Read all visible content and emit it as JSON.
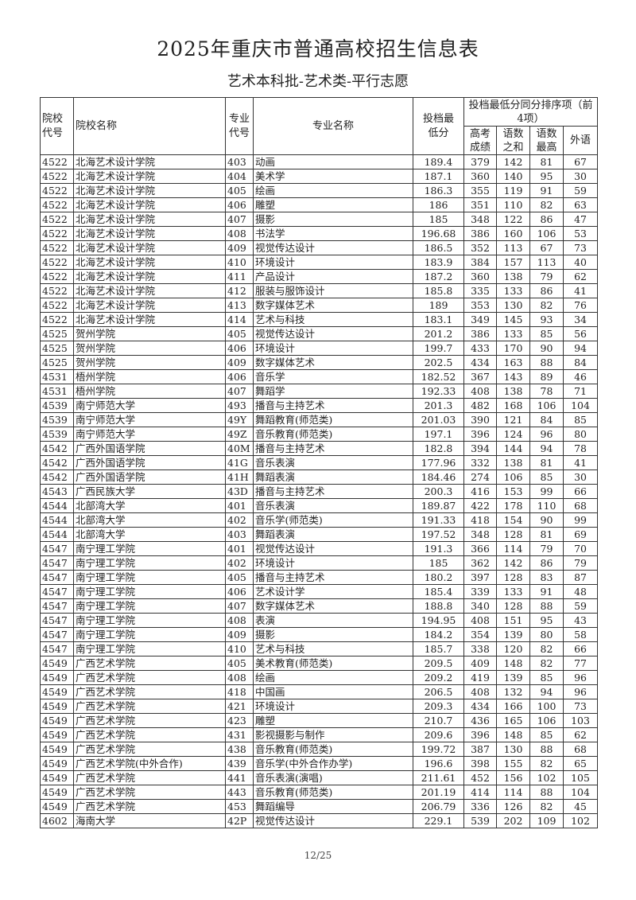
{
  "title": "2025年重庆市普通高校招生信息表",
  "subtitle": "艺术本科批-艺术类-平行志愿",
  "headers": {
    "school_code": "院校代号",
    "school_name": "院校名称",
    "major_code": "专业代号",
    "major_name": "专业名称",
    "min_score": "投档最低分",
    "tiebreak_group": "投档最低分同分排序项（前4项）",
    "gaokao": "高考成绩",
    "yushu_sum": "语数之和",
    "yushu_max": "语数最高",
    "foreign": "外语"
  },
  "rows": [
    [
      "4522",
      "北海艺术设计学院",
      "403",
      "动画",
      "189.4",
      "379",
      "142",
      "81",
      "67"
    ],
    [
      "4522",
      "北海艺术设计学院",
      "404",
      "美术学",
      "187.1",
      "360",
      "140",
      "95",
      "30"
    ],
    [
      "4522",
      "北海艺术设计学院",
      "405",
      "绘画",
      "186.3",
      "355",
      "119",
      "91",
      "59"
    ],
    [
      "4522",
      "北海艺术设计学院",
      "406",
      "雕塑",
      "186",
      "351",
      "110",
      "82",
      "63"
    ],
    [
      "4522",
      "北海艺术设计学院",
      "407",
      "摄影",
      "185",
      "348",
      "122",
      "86",
      "47"
    ],
    [
      "4522",
      "北海艺术设计学院",
      "408",
      "书法学",
      "196.68",
      "386",
      "160",
      "106",
      "53"
    ],
    [
      "4522",
      "北海艺术设计学院",
      "409",
      "视觉传达设计",
      "186.5",
      "352",
      "113",
      "67",
      "73"
    ],
    [
      "4522",
      "北海艺术设计学院",
      "410",
      "环境设计",
      "183.9",
      "384",
      "157",
      "113",
      "40"
    ],
    [
      "4522",
      "北海艺术设计学院",
      "411",
      "产品设计",
      "187.2",
      "360",
      "138",
      "79",
      "62"
    ],
    [
      "4522",
      "北海艺术设计学院",
      "412",
      "服装与服饰设计",
      "185.8",
      "335",
      "133",
      "86",
      "41"
    ],
    [
      "4522",
      "北海艺术设计学院",
      "413",
      "数字媒体艺术",
      "189",
      "353",
      "130",
      "82",
      "76"
    ],
    [
      "4522",
      "北海艺术设计学院",
      "414",
      "艺术与科技",
      "183.1",
      "349",
      "145",
      "93",
      "34"
    ],
    [
      "4525",
      "贺州学院",
      "405",
      "视觉传达设计",
      "201.2",
      "386",
      "133",
      "85",
      "56"
    ],
    [
      "4525",
      "贺州学院",
      "406",
      "环境设计",
      "199.7",
      "433",
      "170",
      "90",
      "94"
    ],
    [
      "4525",
      "贺州学院",
      "409",
      "数字媒体艺术",
      "202.5",
      "434",
      "163",
      "88",
      "84"
    ],
    [
      "4531",
      "梧州学院",
      "406",
      "音乐学",
      "182.52",
      "367",
      "143",
      "89",
      "46"
    ],
    [
      "4531",
      "梧州学院",
      "407",
      "舞蹈学",
      "192.33",
      "408",
      "138",
      "78",
      "71"
    ],
    [
      "4539",
      "南宁师范大学",
      "493",
      "播音与主持艺术",
      "201.3",
      "482",
      "168",
      "106",
      "104"
    ],
    [
      "4539",
      "南宁师范大学",
      "49Y",
      "舞蹈教育(师范类)",
      "201.03",
      "390",
      "121",
      "84",
      "85"
    ],
    [
      "4539",
      "南宁师范大学",
      "49Z",
      "音乐教育(师范类)",
      "197.1",
      "396",
      "124",
      "96",
      "80"
    ],
    [
      "4542",
      "广西外国语学院",
      "40M",
      "播音与主持艺术",
      "182.8",
      "394",
      "144",
      "94",
      "78"
    ],
    [
      "4542",
      "广西外国语学院",
      "41G",
      "音乐表演",
      "177.96",
      "332",
      "138",
      "81",
      "41"
    ],
    [
      "4542",
      "广西外国语学院",
      "41H",
      "舞蹈表演",
      "184.46",
      "274",
      "106",
      "85",
      "30"
    ],
    [
      "4543",
      "广西民族大学",
      "43D",
      "播音与主持艺术",
      "200.3",
      "416",
      "153",
      "99",
      "66"
    ],
    [
      "4544",
      "北部湾大学",
      "401",
      "音乐表演",
      "189.87",
      "422",
      "178",
      "110",
      "68"
    ],
    [
      "4544",
      "北部湾大学",
      "402",
      "音乐学(师范类)",
      "191.33",
      "418",
      "154",
      "90",
      "99"
    ],
    [
      "4544",
      "北部湾大学",
      "403",
      "舞蹈表演",
      "197.52",
      "348",
      "128",
      "81",
      "69"
    ],
    [
      "4547",
      "南宁理工学院",
      "401",
      "视觉传达设计",
      "191.3",
      "366",
      "114",
      "79",
      "70"
    ],
    [
      "4547",
      "南宁理工学院",
      "402",
      "环境设计",
      "185",
      "362",
      "142",
      "86",
      "79"
    ],
    [
      "4547",
      "南宁理工学院",
      "405",
      "播音与主持艺术",
      "180.2",
      "397",
      "128",
      "83",
      "87"
    ],
    [
      "4547",
      "南宁理工学院",
      "406",
      "艺术设计学",
      "185.4",
      "339",
      "133",
      "91",
      "48"
    ],
    [
      "4547",
      "南宁理工学院",
      "407",
      "数字媒体艺术",
      "188.8",
      "340",
      "128",
      "88",
      "59"
    ],
    [
      "4547",
      "南宁理工学院",
      "408",
      "表演",
      "194.95",
      "408",
      "151",
      "95",
      "43"
    ],
    [
      "4547",
      "南宁理工学院",
      "409",
      "摄影",
      "184.2",
      "354",
      "139",
      "80",
      "58"
    ],
    [
      "4547",
      "南宁理工学院",
      "410",
      "艺术与科技",
      "185.7",
      "338",
      "120",
      "82",
      "66"
    ],
    [
      "4549",
      "广西艺术学院",
      "405",
      "美术教育(师范类)",
      "209.5",
      "409",
      "148",
      "82",
      "77"
    ],
    [
      "4549",
      "广西艺术学院",
      "408",
      "绘画",
      "209.2",
      "419",
      "139",
      "85",
      "96"
    ],
    [
      "4549",
      "广西艺术学院",
      "418",
      "中国画",
      "206.5",
      "408",
      "132",
      "94",
      "96"
    ],
    [
      "4549",
      "广西艺术学院",
      "421",
      "环境设计",
      "209.3",
      "434",
      "166",
      "100",
      "73"
    ],
    [
      "4549",
      "广西艺术学院",
      "423",
      "雕塑",
      "210.7",
      "436",
      "165",
      "106",
      "103"
    ],
    [
      "4549",
      "广西艺术学院",
      "431",
      "影视摄影与制作",
      "209.6",
      "396",
      "148",
      "85",
      "62"
    ],
    [
      "4549",
      "广西艺术学院",
      "438",
      "音乐教育(师范类)",
      "199.72",
      "387",
      "130",
      "88",
      "68"
    ],
    [
      "4549",
      "广西艺术学院(中外合作)",
      "439",
      "音乐学(中外合作办学)",
      "196.6",
      "398",
      "155",
      "82",
      "65"
    ],
    [
      "4549",
      "广西艺术学院",
      "441",
      "音乐表演(演唱)",
      "211.61",
      "452",
      "156",
      "102",
      "105"
    ],
    [
      "4549",
      "广西艺术学院",
      "443",
      "音乐教育(师范类)",
      "201.19",
      "414",
      "114",
      "88",
      "104"
    ],
    [
      "4549",
      "广西艺术学院",
      "453",
      "舞蹈编导",
      "206.79",
      "336",
      "126",
      "82",
      "45"
    ],
    [
      "4602",
      "海南大学",
      "42P",
      "视觉传达设计",
      "229.1",
      "539",
      "202",
      "109",
      "102"
    ]
  ],
  "page_number": "12/25"
}
